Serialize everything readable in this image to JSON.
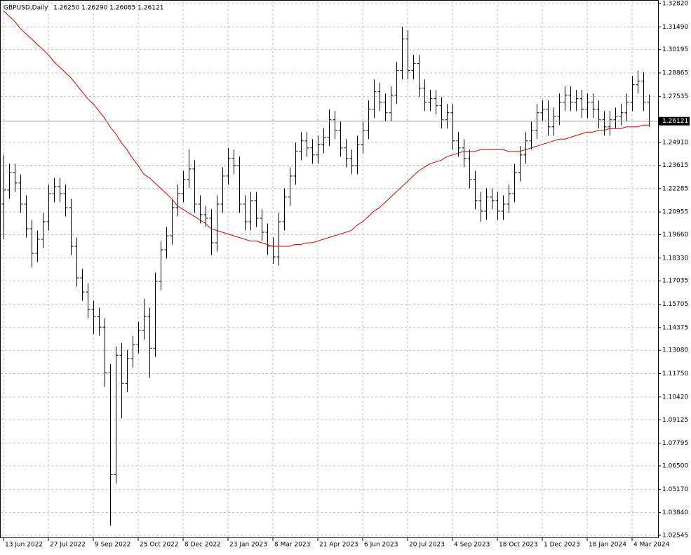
{
  "chart_data": {
    "type": "ohlc",
    "symbol": "GBPUSD,Daily",
    "quote": "1.26250 1.26290 1.26085 1.26121",
    "xlim": [
      -0.625,
      116.625
    ],
    "ylim": [
      1.02545,
      1.3282
    ],
    "grid": true,
    "bar_color": "#000000",
    "xticks": [
      {
        "value": 0,
        "label": "13 Jun 2022"
      },
      {
        "value": 8,
        "label": "27 Jul 2022"
      },
      {
        "value": 16,
        "label": "9 Sep 2022"
      },
      {
        "value": 24,
        "label": "25 Oct 2022"
      },
      {
        "value": 32,
        "label": "8 Dec 2022"
      },
      {
        "value": 40,
        "label": "23 Jan 2023"
      },
      {
        "value": 48,
        "label": "8 Mar 2023"
      },
      {
        "value": 56,
        "label": "21 Apr 2023"
      },
      {
        "value": 64,
        "label": "6 Jun 2023"
      },
      {
        "value": 72,
        "label": "20 Jul 2023"
      },
      {
        "value": 80,
        "label": "4 Sep 2023"
      },
      {
        "value": 88,
        "label": "18 Oct 2023"
      },
      {
        "value": 96,
        "label": "1 Dec 2023"
      },
      {
        "value": 104,
        "label": "18 Jan 2024"
      },
      {
        "value": 112,
        "label": "4 Mar 2024"
      }
    ],
    "yticks": [
      {
        "value": 1.3282,
        "label": "1.32820"
      },
      {
        "value": 1.3149,
        "label": "1.31490"
      },
      1.30195,
      1.28865,
      1.27535,
      {
        "value": 1.2491,
        "label": "1.24910"
      },
      1.23615,
      1.22285,
      1.20955,
      {
        "value": 1.1966,
        "label": "1.19660"
      },
      {
        "value": 1.1833,
        "label": "1.18330"
      },
      1.17035,
      1.15705,
      1.14375,
      {
        "value": 1.1308,
        "label": "1.13080"
      },
      {
        "value": 1.1175,
        "label": "1.11750"
      },
      {
        "value": 1.1042,
        "label": "1.10420"
      },
      1.09125,
      1.07795,
      {
        "value": 1.065,
        "label": "1.06500"
      },
      {
        "value": 1.0517,
        "label": "1.05170"
      },
      {
        "value": 1.0384,
        "label": "1.03840"
      },
      1.02545
    ],
    "current_price": 1.26121,
    "open": [
      1.214,
      1.222,
      1.232,
      1.226,
      1.214,
      1.2,
      1.186,
      1.194,
      1.204,
      1.22,
      1.224,
      1.22,
      1.212,
      1.19,
      1.172,
      1.164,
      1.154,
      1.15,
      1.144,
      1.118,
      1.06,
      1.128,
      1.112,
      1.126,
      1.134,
      1.142,
      1.15,
      1.132,
      1.17,
      1.188,
      1.196,
      1.212,
      1.22,
      1.228,
      1.234,
      1.214,
      1.208,
      1.206,
      1.192,
      1.214,
      1.23,
      1.24,
      1.236,
      1.214,
      1.204,
      1.216,
      1.206,
      1.198,
      1.19,
      1.184,
      1.204,
      1.218,
      1.23,
      1.244,
      1.25,
      1.246,
      1.242,
      1.248,
      1.252,
      1.262,
      1.256,
      1.246,
      1.24,
      1.236,
      1.248,
      1.256,
      1.268,
      1.278,
      1.272,
      1.266,
      1.276,
      1.29,
      1.308,
      1.29,
      1.294,
      1.28,
      1.272,
      1.274,
      1.27,
      1.262,
      1.266,
      1.25,
      1.246,
      1.24,
      1.228,
      1.216,
      1.21,
      1.218,
      1.216,
      1.21,
      1.214,
      1.22,
      1.232,
      1.242,
      1.25,
      1.256,
      1.266,
      1.268,
      1.258,
      1.264,
      1.272,
      1.276,
      1.272,
      1.274,
      1.268,
      1.272,
      1.268,
      1.262,
      1.258,
      1.262,
      1.264,
      1.266,
      1.272,
      1.282,
      1.284,
      1.272
    ],
    "high": [
      1.242,
      1.237,
      1.237,
      1.231,
      1.219,
      1.205,
      1.199,
      1.209,
      1.225,
      1.229,
      1.229,
      1.225,
      1.217,
      1.195,
      1.177,
      1.169,
      1.159,
      1.155,
      1.149,
      1.123,
      1.133,
      1.135,
      1.131,
      1.139,
      1.147,
      1.16,
      1.155,
      1.175,
      1.193,
      1.201,
      1.217,
      1.225,
      1.233,
      1.245,
      1.239,
      1.219,
      1.213,
      1.211,
      1.219,
      1.235,
      1.246,
      1.245,
      1.241,
      1.219,
      1.221,
      1.221,
      1.211,
      1.203,
      1.195,
      1.209,
      1.223,
      1.235,
      1.249,
      1.255,
      1.255,
      1.251,
      1.253,
      1.257,
      1.268,
      1.267,
      1.261,
      1.251,
      1.245,
      1.253,
      1.261,
      1.273,
      1.285,
      1.283,
      1.277,
      1.281,
      1.295,
      1.315,
      1.313,
      1.299,
      1.299,
      1.285,
      1.279,
      1.279,
      1.275,
      1.271,
      1.271,
      1.255,
      1.251,
      1.245,
      1.233,
      1.221,
      1.223,
      1.223,
      1.221,
      1.219,
      1.225,
      1.237,
      1.247,
      1.255,
      1.261,
      1.271,
      1.273,
      1.273,
      1.269,
      1.277,
      1.281,
      1.281,
      1.279,
      1.279,
      1.277,
      1.277,
      1.273,
      1.267,
      1.267,
      1.269,
      1.271,
      1.277,
      1.287,
      1.29,
      1.289,
      1.2765
    ],
    "low": [
      1.194,
      1.217,
      1.221,
      1.209,
      1.195,
      1.178,
      1.181,
      1.189,
      1.199,
      1.215,
      1.215,
      1.207,
      1.185,
      1.167,
      1.159,
      1.149,
      1.14,
      1.139,
      1.11,
      1.031,
      1.055,
      1.092,
      1.107,
      1.121,
      1.129,
      1.137,
      1.115,
      1.127,
      1.165,
      1.183,
      1.191,
      1.207,
      1.215,
      1.223,
      1.209,
      1.203,
      1.201,
      1.185,
      1.187,
      1.209,
      1.225,
      1.231,
      1.209,
      1.199,
      1.199,
      1.201,
      1.193,
      1.185,
      1.18,
      1.179,
      1.199,
      1.213,
      1.225,
      1.239,
      1.241,
      1.237,
      1.237,
      1.243,
      1.247,
      1.251,
      1.241,
      1.235,
      1.231,
      1.231,
      1.243,
      1.251,
      1.263,
      1.267,
      1.261,
      1.261,
      1.271,
      1.285,
      1.285,
      1.285,
      1.275,
      1.267,
      1.267,
      1.265,
      1.257,
      1.257,
      1.245,
      1.241,
      1.235,
      1.223,
      1.211,
      1.204,
      1.205,
      1.211,
      1.205,
      1.205,
      1.209,
      1.215,
      1.227,
      1.237,
      1.245,
      1.251,
      1.261,
      1.253,
      1.253,
      1.259,
      1.267,
      1.267,
      1.267,
      1.263,
      1.263,
      1.263,
      1.257,
      1.253,
      1.253,
      1.257,
      1.259,
      1.261,
      1.267,
      1.277,
      1.267,
      1.258
    ],
    "close": [
      1.222,
      1.232,
      1.226,
      1.214,
      1.2,
      1.186,
      1.194,
      1.204,
      1.22,
      1.224,
      1.22,
      1.212,
      1.19,
      1.172,
      1.164,
      1.154,
      1.15,
      1.144,
      1.118,
      1.06,
      1.128,
      1.112,
      1.126,
      1.134,
      1.142,
      1.15,
      1.132,
      1.17,
      1.188,
      1.196,
      1.212,
      1.22,
      1.228,
      1.234,
      1.214,
      1.208,
      1.206,
      1.192,
      1.214,
      1.23,
      1.24,
      1.236,
      1.214,
      1.204,
      1.216,
      1.206,
      1.198,
      1.19,
      1.184,
      1.204,
      1.218,
      1.23,
      1.244,
      1.25,
      1.246,
      1.242,
      1.248,
      1.252,
      1.262,
      1.256,
      1.246,
      1.24,
      1.236,
      1.248,
      1.256,
      1.268,
      1.278,
      1.272,
      1.266,
      1.276,
      1.29,
      1.308,
      1.29,
      1.294,
      1.28,
      1.272,
      1.274,
      1.27,
      1.262,
      1.266,
      1.25,
      1.246,
      1.24,
      1.228,
      1.216,
      1.21,
      1.218,
      1.216,
      1.21,
      1.214,
      1.22,
      1.232,
      1.242,
      1.25,
      1.256,
      1.266,
      1.268,
      1.258,
      1.264,
      1.272,
      1.276,
      1.272,
      1.274,
      1.268,
      1.272,
      1.268,
      1.262,
      1.258,
      1.262,
      1.264,
      1.266,
      1.272,
      1.282,
      1.284,
      1.272,
      1.26121
    ],
    "ma": {
      "color": "#e00000",
      "values": [
        1.324,
        1.321,
        1.318,
        1.314,
        1.311,
        1.308,
        1.305,
        1.302,
        1.299,
        1.295,
        1.292,
        1.289,
        1.286,
        1.282,
        1.278,
        1.274,
        1.271,
        1.267,
        1.263,
        1.258,
        1.254,
        1.249,
        1.245,
        1.24,
        1.236,
        1.231,
        1.229,
        1.226,
        1.223,
        1.22,
        1.217,
        1.213,
        1.211,
        1.209,
        1.207,
        1.205,
        1.203,
        1.2,
        1.199,
        1.198,
        1.197,
        1.196,
        1.195,
        1.194,
        1.193,
        1.193,
        1.192,
        1.191,
        1.19,
        1.19,
        1.19,
        1.19,
        1.191,
        1.191,
        1.192,
        1.192,
        1.193,
        1.194,
        1.195,
        1.196,
        1.197,
        1.198,
        1.199,
        1.202,
        1.204,
        1.207,
        1.21,
        1.212,
        1.215,
        1.218,
        1.221,
        1.224,
        1.227,
        1.23,
        1.233,
        1.235,
        1.237,
        1.238,
        1.239,
        1.241,
        1.242,
        1.243,
        1.244,
        1.244,
        1.244,
        1.245,
        1.245,
        1.245,
        1.245,
        1.245,
        1.244,
        1.244,
        1.244,
        1.245,
        1.246,
        1.247,
        1.248,
        1.249,
        1.25,
        1.251,
        1.251,
        1.252,
        1.253,
        1.254,
        1.255,
        1.255,
        1.256,
        1.256,
        1.257,
        1.257,
        1.257,
        1.258,
        1.258,
        1.258,
        1.259,
        1.259
      ]
    }
  }
}
